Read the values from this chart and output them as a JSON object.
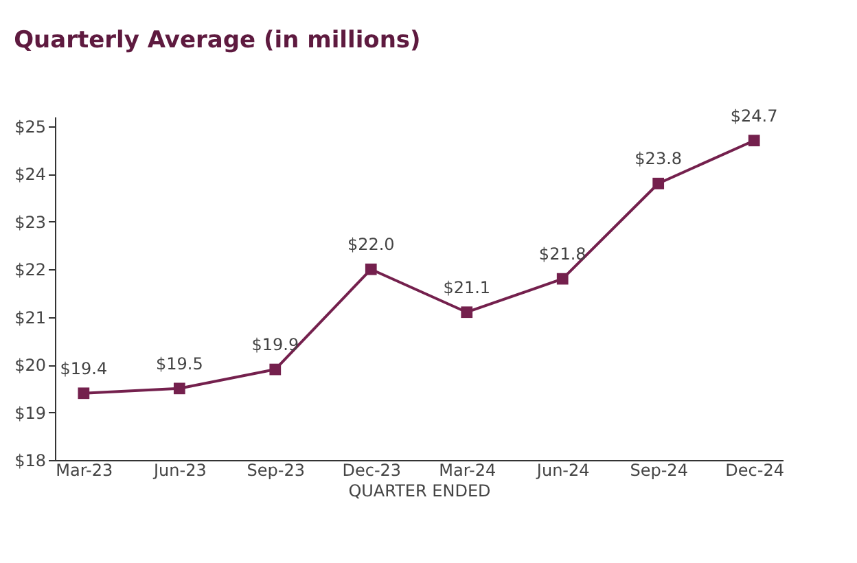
{
  "chart_data": {
    "type": "line",
    "title": "Quarterly Average (in millions)",
    "xlabel": "QUARTER ENDED",
    "categories": [
      "Mar-23",
      "Jun-23",
      "Sep-23",
      "Dec-23",
      "Mar-24",
      "Jun-24",
      "Sep-24",
      "Dec-24"
    ],
    "series": [
      {
        "color": "#74204d",
        "values": [
          19.4,
          19.5,
          19.9,
          22.0,
          21.1,
          21.8,
          23.8,
          24.7
        ],
        "value_labels": [
          "$19.4",
          "$19.5",
          "$19.9",
          "$22.0",
          "$21.1",
          "$21.8",
          "$23.8",
          "$24.7"
        ]
      }
    ],
    "ylim": [
      18,
      25.2
    ],
    "yticks": [
      {
        "value": 18,
        "label": "$18"
      },
      {
        "value": 19,
        "label": "$19"
      },
      {
        "value": 20,
        "label": "$20"
      },
      {
        "value": 21,
        "label": "$21"
      },
      {
        "value": 22,
        "label": "$22"
      },
      {
        "value": 23,
        "label": "$23"
      },
      {
        "value": 24,
        "label": "$24"
      },
      {
        "value": 25,
        "label": "$25"
      }
    ],
    "grid": false,
    "marker": "square",
    "line_style": "solid"
  }
}
